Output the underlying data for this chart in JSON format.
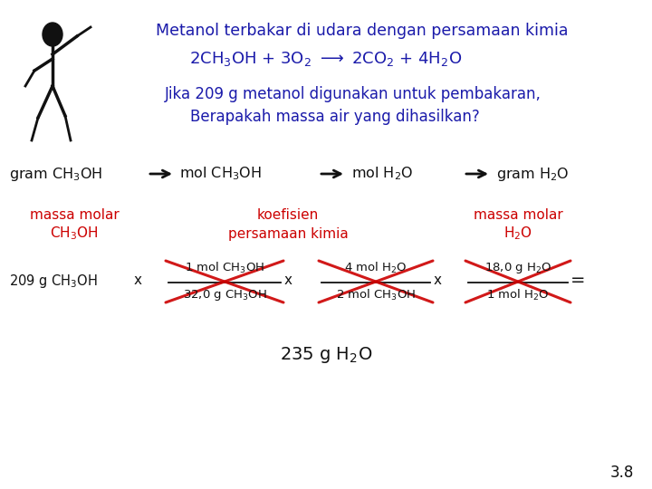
{
  "bg_color": "#ffffff",
  "blue_color": "#1a1aaa",
  "red_color": "#cc0000",
  "black_color": "#111111",
  "title_line1": "Metanol terbakar di udara dengan persamaan kimia",
  "equation_parts": [
    "2CH",
    "3",
    "OH + 3O",
    "2",
    " ⟶ 2CO",
    "2",
    " + 4H",
    "2",
    "O"
  ],
  "question_line1": "Jika 209 g metanol digunakan untuk pembakaran,",
  "question_line2": "Berapakah massa air yang dihasilkan?",
  "flow_labels": [
    "gram CH$_3$OH",
    "mol CH$_3$OH",
    "mol H$_2$O",
    "gram H$_2$O"
  ],
  "red_label1_line1": "massa molar",
  "red_label1_line2": "CH$_3$OH",
  "red_label2_line1": "koefisien",
  "red_label2_line2": "persamaan kimia",
  "red_label3_line1": "massa molar",
  "red_label3_line2": "H$_2$O",
  "frac1_num": "1 mol CH$_3$OH",
  "frac1_den": "32,0 g CH$_3$OH",
  "frac2_num": "4 mol H$_2$O",
  "frac2_den": "2 mol CH$_3$OH",
  "frac3_num": "18,0 g H$_2$O",
  "frac3_den": "1 mol H$_2$O",
  "start_term": "209 g CH$_3$OH",
  "result": "235 g H$_2$O",
  "page_number": "3.8"
}
